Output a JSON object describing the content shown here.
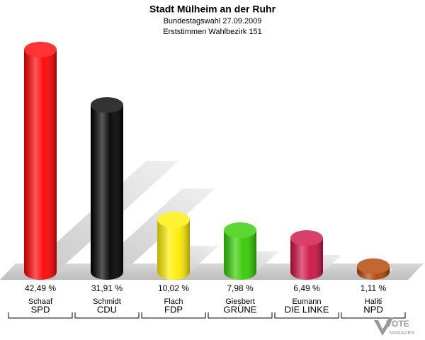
{
  "chart_data": {
    "type": "bar3d",
    "title": "Stadt Mülheim an der Ruhr",
    "subtitle": "Bundestagswahl 27.09.2009",
    "subtitle2": "Erststimmen Wahlbezirk 151",
    "categories": [
      "SPD",
      "CDU",
      "FDP",
      "GRÜNE",
      "DIE LINKE",
      "NPD"
    ],
    "candidates": [
      "Schaaf",
      "Schmidt",
      "Flach",
      "Giesbert",
      "Eumann",
      "Haliti"
    ],
    "values": [
      42.49,
      31.91,
      10.02,
      7.98,
      6.49,
      1.11
    ],
    "value_labels": [
      "42,49 %",
      "31,91 %",
      "10,02 %",
      "7,98 %",
      "6,49 %",
      "1,11 %"
    ],
    "colors": [
      "#ff0000",
      "#000000",
      "#ffee00",
      "#33cc00",
      "#cc1144",
      "#b34200"
    ],
    "logo_text": "VOTE",
    "logo_subtext": "MANAGER"
  }
}
